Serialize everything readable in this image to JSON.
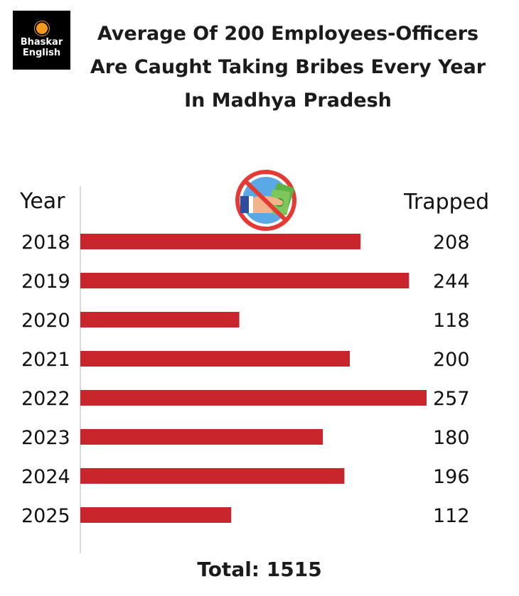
{
  "logo": {
    "line1": "Bhaskar",
    "line2": "English"
  },
  "title_lines": [
    "Average Of 200 Employees-Officers",
    "Are Caught Taking Bribes Every Year",
    "In Madhya Pradesh"
  ],
  "headers": {
    "year": "Year",
    "trapped": "Trapped"
  },
  "icon": "no-bribe-icon",
  "colors": {
    "bar": "#c8252c",
    "logo_bg": "#000000",
    "logo_sun": "#f39a1d"
  },
  "total_label": "Total: 1515",
  "chart_data": {
    "type": "bar",
    "orientation": "horizontal",
    "title": "Average Of 200 Employees-Officers Are Caught Taking Bribes Every Year In Madhya Pradesh",
    "categories": [
      "2018",
      "2019",
      "2020",
      "2021",
      "2022",
      "2023",
      "2024",
      "2025"
    ],
    "values": [
      208,
      244,
      118,
      200,
      257,
      180,
      196,
      112
    ],
    "data_labels": [
      "208",
      "244",
      "118",
      "200",
      "257",
      "180",
      "196",
      "112"
    ],
    "xlabel": "Trapped",
    "ylabel": "Year",
    "xlim": [
      0,
      257
    ],
    "grid": false,
    "legend": "none"
  }
}
